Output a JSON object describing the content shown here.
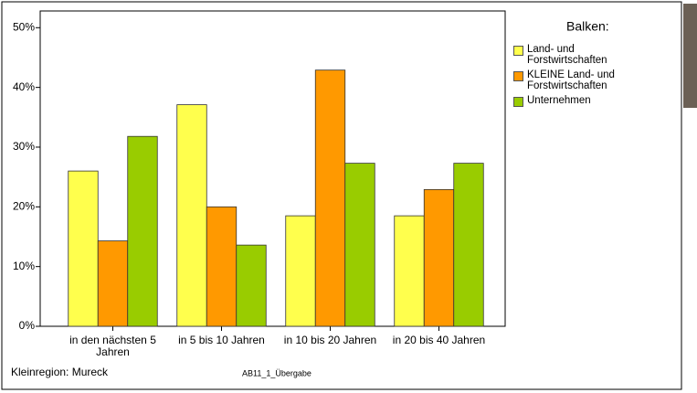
{
  "chart_data": {
    "type": "bar",
    "categories": [
      "in den nächsten 5 Jahren",
      "in 5 bis 10 Jahren",
      "in 10 bis 20 Jahren",
      "in 20 bis 40 Jahren"
    ],
    "series": [
      {
        "name": "Land- und Forstwirtschaften",
        "color": "#ffff4d",
        "values": [
          26,
          37.1,
          18.5,
          18.5
        ]
      },
      {
        "name": "KLEINE Land- und Forstwirtschaften",
        "color": "#ff9900",
        "values": [
          14.3,
          20,
          42.9,
          22.9
        ]
      },
      {
        "name": "Unternehmen",
        "color": "#99cc00",
        "values": [
          31.8,
          13.6,
          27.3,
          27.3
        ]
      }
    ],
    "ylim": [
      0,
      52.8
    ],
    "yticks": [
      {
        "value": 0,
        "label": "0%"
      },
      {
        "value": 10,
        "label": "10%"
      },
      {
        "value": 20,
        "label": "20%"
      },
      {
        "value": 30,
        "label": "30%"
      },
      {
        "value": 40,
        "label": "40%"
      },
      {
        "value": 50,
        "label": "50%"
      }
    ],
    "legend_title": "Balken:",
    "footer_left": "Kleinregion: Mureck",
    "footer_center": "AB11_1_Übergabe"
  }
}
